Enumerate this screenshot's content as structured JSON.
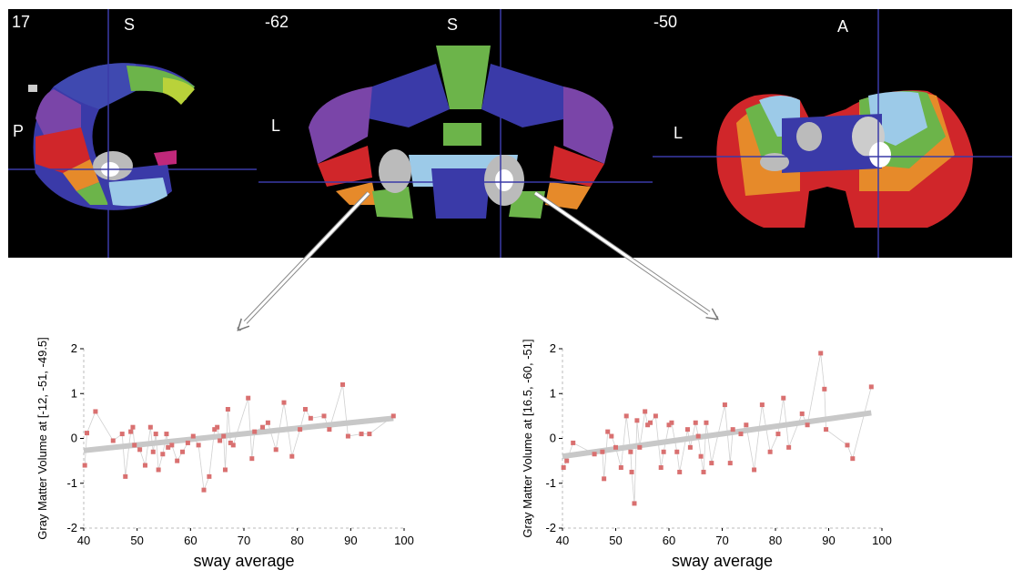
{
  "panels": [
    {
      "slice": "17",
      "labels": [
        "S",
        "P"
      ]
    },
    {
      "slice": "-62",
      "labels": [
        "S",
        "L"
      ]
    },
    {
      "slice": "-50",
      "labels": [
        "A",
        "L"
      ]
    }
  ],
  "colors": {
    "point": "#d97070",
    "fit": "#c8c8c8",
    "connector": "#d0d0d0",
    "crosshair": "#3a3aa8"
  },
  "chart_data": [
    {
      "type": "scatter",
      "xlabel": "sway average",
      "ylabel": "Gray Matter Volume at [-12, -51, -49.5]",
      "xlim": [
        40,
        100
      ],
      "ylim": [
        -2,
        2
      ],
      "xticks": [
        "40",
        "50",
        "60",
        "70",
        "80",
        "90",
        "100"
      ],
      "yticks": [
        "-2",
        "-1",
        "0",
        "1",
        "2"
      ],
      "grid": false,
      "fit_line": {
        "x": [
          40,
          98
        ],
        "y": [
          -0.27,
          0.45
        ]
      },
      "points": [
        [
          40.2,
          -0.6
        ],
        [
          40.6,
          0.12
        ],
        [
          42.2,
          0.6
        ],
        [
          45.5,
          -0.05
        ],
        [
          47.2,
          0.1
        ],
        [
          47.8,
          -0.85
        ],
        [
          48.8,
          0.15
        ],
        [
          49.2,
          0.25
        ],
        [
          49.5,
          -0.15
        ],
        [
          50.5,
          -0.25
        ],
        [
          51.5,
          -0.6
        ],
        [
          52.5,
          0.25
        ],
        [
          53,
          -0.3
        ],
        [
          53.5,
          0.1
        ],
        [
          54,
          -0.7
        ],
        [
          54.8,
          -0.35
        ],
        [
          55.5,
          0.1
        ],
        [
          55.8,
          -0.2
        ],
        [
          56.5,
          -0.15
        ],
        [
          57.5,
          -0.5
        ],
        [
          58.5,
          -0.3
        ],
        [
          59.5,
          -0.1
        ],
        [
          60.5,
          0.05
        ],
        [
          61.5,
          -0.15
        ],
        [
          62.5,
          -1.15
        ],
        [
          63.5,
          -0.85
        ],
        [
          64.5,
          0.2
        ],
        [
          65,
          0.25
        ],
        [
          65.5,
          -0.05
        ],
        [
          66.2,
          0.05
        ],
        [
          66.5,
          -0.7
        ],
        [
          67,
          0.65
        ],
        [
          67.5,
          -0.1
        ],
        [
          68,
          -0.15
        ],
        [
          70.8,
          0.9
        ],
        [
          71.5,
          -0.45
        ],
        [
          72,
          0.15
        ],
        [
          73.5,
          0.25
        ],
        [
          74.5,
          0.35
        ],
        [
          76,
          -0.25
        ],
        [
          77.5,
          0.8
        ],
        [
          79,
          -0.4
        ],
        [
          80.5,
          0.2
        ],
        [
          81.5,
          0.65
        ],
        [
          82.5,
          0.45
        ],
        [
          85,
          0.5
        ],
        [
          86,
          0.2
        ],
        [
          88.5,
          1.2
        ],
        [
          89.5,
          0.05
        ],
        [
          92,
          0.1
        ],
        [
          93.5,
          0.1
        ],
        [
          98,
          0.5
        ]
      ]
    },
    {
      "type": "scatter",
      "xlabel": "sway average",
      "ylabel": "Gray Matter Volume at [16.5, -60, -51]",
      "xlim": [
        40,
        100
      ],
      "ylim": [
        -2,
        2
      ],
      "xticks": [
        "40",
        "50",
        "60",
        "70",
        "80",
        "90",
        "100"
      ],
      "yticks": [
        "-2",
        "-1",
        "0",
        "1",
        "2"
      ],
      "grid": false,
      "fit_line": {
        "x": [
          40,
          98
        ],
        "y": [
          -0.4,
          0.57
        ]
      },
      "points": [
        [
          40.2,
          -0.65
        ],
        [
          40.8,
          -0.5
        ],
        [
          42,
          -0.1
        ],
        [
          46,
          -0.35
        ],
        [
          47.5,
          -0.3
        ],
        [
          47.8,
          -0.9
        ],
        [
          48.5,
          0.15
        ],
        [
          49.2,
          0.05
        ],
        [
          50,
          -0.2
        ],
        [
          51,
          -0.65
        ],
        [
          52,
          0.5
        ],
        [
          52.8,
          -0.3
        ],
        [
          53,
          -0.75
        ],
        [
          53.5,
          -1.45
        ],
        [
          54,
          0.4
        ],
        [
          54.5,
          -0.2
        ],
        [
          55.5,
          0.6
        ],
        [
          56,
          0.3
        ],
        [
          56.5,
          0.35
        ],
        [
          57.5,
          0.5
        ],
        [
          58.5,
          -0.65
        ],
        [
          59,
          -0.3
        ],
        [
          60,
          0.3
        ],
        [
          60.5,
          0.35
        ],
        [
          61.5,
          -0.3
        ],
        [
          62,
          -0.75
        ],
        [
          63.5,
          0.2
        ],
        [
          64,
          -0.2
        ],
        [
          65,
          0.35
        ],
        [
          65.5,
          0.05
        ],
        [
          66,
          -0.4
        ],
        [
          66.5,
          -0.75
        ],
        [
          67,
          0.35
        ],
        [
          68,
          -0.55
        ],
        [
          70.5,
          0.75
        ],
        [
          71.5,
          -0.55
        ],
        [
          72,
          0.2
        ],
        [
          73.5,
          0.1
        ],
        [
          74.5,
          0.3
        ],
        [
          76,
          -0.7
        ],
        [
          77.5,
          0.75
        ],
        [
          79,
          -0.3
        ],
        [
          80.5,
          0.1
        ],
        [
          81.5,
          0.9
        ],
        [
          82.5,
          -0.2
        ],
        [
          85,
          0.55
        ],
        [
          86,
          0.3
        ],
        [
          88.5,
          1.9
        ],
        [
          89.2,
          1.1
        ],
        [
          89.5,
          0.2
        ],
        [
          93.5,
          -0.15
        ],
        [
          94.5,
          -0.45
        ],
        [
          98,
          1.15
        ]
      ]
    }
  ]
}
